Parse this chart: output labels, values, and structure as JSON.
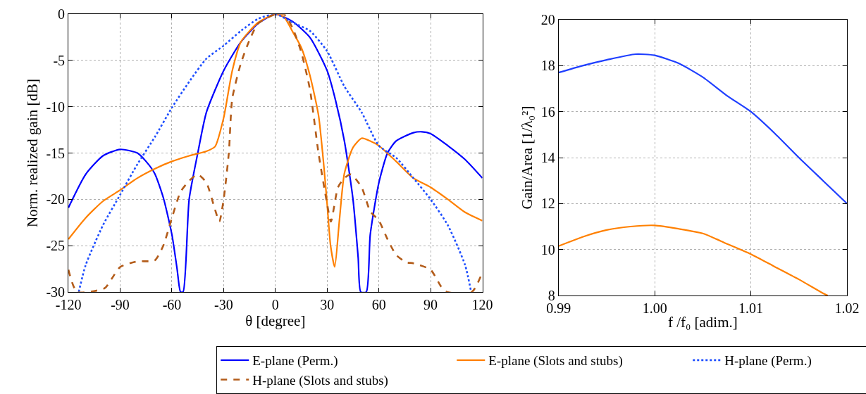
{
  "chart_data": [
    {
      "type": "line",
      "xlabel": "θ [degree]",
      "ylabel": "Norm. realized gain [dB]",
      "xlim": [
        -120,
        120
      ],
      "ylim": [
        -30,
        0
      ],
      "xticks": [
        -120,
        -90,
        -60,
        -30,
        0,
        30,
        60,
        90,
        120
      ],
      "yticks": [
        -30,
        -25,
        -20,
        -15,
        -10,
        -5,
        0
      ],
      "grid": true,
      "legend": "bottom",
      "series": [
        {
          "name": "E-plane (Perm.)",
          "color": "#0000ff",
          "line_style": "solid",
          "x": [
            -120,
            -110,
            -100,
            -90,
            -80,
            -75,
            -70,
            -65,
            -60,
            -57,
            -55,
            -53.5,
            -50,
            -45,
            -40,
            -30,
            -20,
            -10,
            0,
            10,
            20,
            30,
            35,
            40,
            45,
            48,
            49.5,
            52.7,
            55,
            60,
            65,
            70,
            80,
            85,
            90,
            100,
            110,
            120
          ],
          "values": [
            -20.9,
            -17.3,
            -15.3,
            -14.6,
            -15.0,
            -15.9,
            -17.2,
            -19.8,
            -23.8,
            -27.5,
            -30,
            -30,
            -20,
            -15,
            -10.6,
            -6.1,
            -3,
            -1,
            0,
            -0.8,
            -2.5,
            -6.1,
            -9.4,
            -13.7,
            -20,
            -26.3,
            -30,
            -30,
            -23.8,
            -18.2,
            -15,
            -13.7,
            -12.8,
            -12.7,
            -12.9,
            -14.2,
            -15.7,
            -17.7
          ]
        },
        {
          "name": "E-plane (Slots and stubs)",
          "color": "#ff8000",
          "line_style": "solid",
          "x": [
            -120,
            -110,
            -100,
            -90,
            -80,
            -70,
            -60,
            -50,
            -40,
            -35,
            -30,
            -25,
            -20,
            -10,
            0,
            5,
            10,
            15,
            20,
            25,
            28,
            30,
            32,
            34.4,
            37,
            40,
            45,
            50,
            55,
            60,
            70,
            80,
            90,
            100,
            110,
            120
          ],
          "values": [
            -24.3,
            -22,
            -20.2,
            -19,
            -17.7,
            -16.7,
            -15.9,
            -15.3,
            -14.8,
            -14.3,
            -11.2,
            -6.1,
            -3,
            -0.9,
            0,
            -0.3,
            -1.9,
            -3.6,
            -6.6,
            -10.9,
            -16.2,
            -20.5,
            -25,
            -27.3,
            -22.5,
            -17.2,
            -14.4,
            -13.4,
            -13.7,
            -14.2,
            -15.9,
            -17.7,
            -18.7,
            -20,
            -21.4,
            -22.3
          ]
        },
        {
          "name": "H-plane (Perm.)",
          "color": "#1f4fff",
          "line_style": "dotted",
          "x": [
            -114,
            -110,
            -100,
            -90,
            -80,
            -70,
            -60,
            -50,
            -40,
            -30,
            -20,
            -10,
            0,
            10,
            20,
            30,
            40,
            50,
            60,
            70,
            80,
            90,
            100,
            110,
            113.5
          ],
          "values": [
            -30,
            -27.1,
            -22.8,
            -19.5,
            -16.2,
            -13.3,
            -10.1,
            -7.3,
            -4.8,
            -3.4,
            -1.8,
            -0.5,
            0,
            -0.9,
            -1.8,
            -4,
            -7.8,
            -10.6,
            -14.2,
            -15.5,
            -17.7,
            -20,
            -22.8,
            -27.1,
            -30
          ]
        },
        {
          "name": "H-plane (Slots and stubs)",
          "color": "#b35c1a",
          "line_style": "dashed",
          "x": [
            -120,
            -115,
            -99,
            -95,
            -90,
            -80,
            -70,
            -65,
            -60,
            -55,
            -50,
            -45,
            -40,
            -35,
            -32.5,
            -30,
            -27,
            -25,
            -20,
            -15,
            -10,
            0,
            5,
            10,
            15,
            20,
            25,
            30,
            32.2,
            36.3,
            40,
            43.8,
            50,
            55,
            60,
            65,
            70,
            75.8,
            80,
            90,
            96,
            99.4,
            113.9,
            120
          ],
          "values": [
            -27.6,
            -30,
            -29.6,
            -28.6,
            -27.3,
            -26.7,
            -26.6,
            -25,
            -22,
            -19.2,
            -18,
            -17.3,
            -18.2,
            -21.1,
            -22.4,
            -20,
            -15,
            -9.1,
            -5.3,
            -2.8,
            -1,
            0,
            0,
            -1.5,
            -4.1,
            -8.1,
            -15,
            -20.5,
            -22.4,
            -18.7,
            -17.7,
            -17.3,
            -18.7,
            -21.3,
            -22.3,
            -24.3,
            -26,
            -26.8,
            -26.9,
            -27.6,
            -29.4,
            -30,
            -30,
            -27.9
          ]
        }
      ]
    },
    {
      "type": "line",
      "xlabel": "f /f₀ [adim.]",
      "ylabel": "Gain/Area [1/λ₀²]",
      "xlim": [
        0.99,
        1.02
      ],
      "ylim": [
        8,
        20
      ],
      "xticks": [
        0.99,
        {
          "value": 1,
          "label": "1.00"
        },
        1.01,
        1.02
      ],
      "yticks": [
        8,
        10,
        12,
        14,
        16,
        18,
        20
      ],
      "grid": true,
      "series": [
        {
          "color": "#1f3fff",
          "line_style": "solid",
          "x": [
            0.99,
            0.9925,
            0.995,
            0.998,
            1.0,
            1.0025,
            1.005,
            1.0075,
            1.01,
            1.0125,
            1.015,
            1.0175,
            1.02
          ],
          "values": [
            17.7,
            18.0,
            18.25,
            18.5,
            18.45,
            18.1,
            17.5,
            16.7,
            16.0,
            15.05,
            14.0,
            13.0,
            12.0
          ]
        },
        {
          "color": "#ff8000",
          "line_style": "solid",
          "x": [
            0.99,
            0.9925,
            0.995,
            0.9975,
            1.0,
            1.0025,
            1.005,
            1.0075,
            1.01,
            1.0125,
            1.015,
            1.0175,
            1.018
          ],
          "values": [
            10.15,
            10.55,
            10.85,
            11.0,
            11.05,
            10.9,
            10.7,
            10.25,
            9.8,
            9.25,
            8.7,
            8.1,
            8.0
          ]
        }
      ]
    }
  ]
}
